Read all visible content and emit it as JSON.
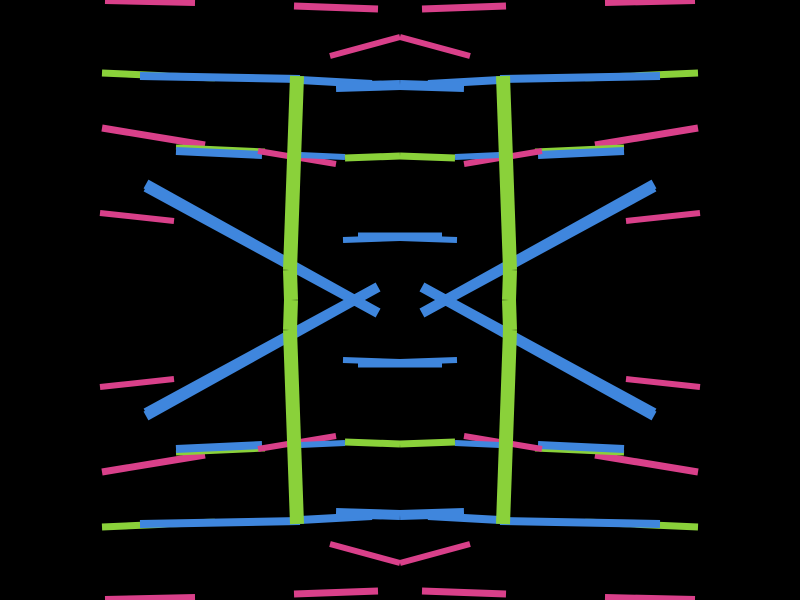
{
  "background": "#000000",
  "colors": {
    "pink": "#d9408a",
    "green": "#8ad13a",
    "blue": "#3f86dd"
  }
}
